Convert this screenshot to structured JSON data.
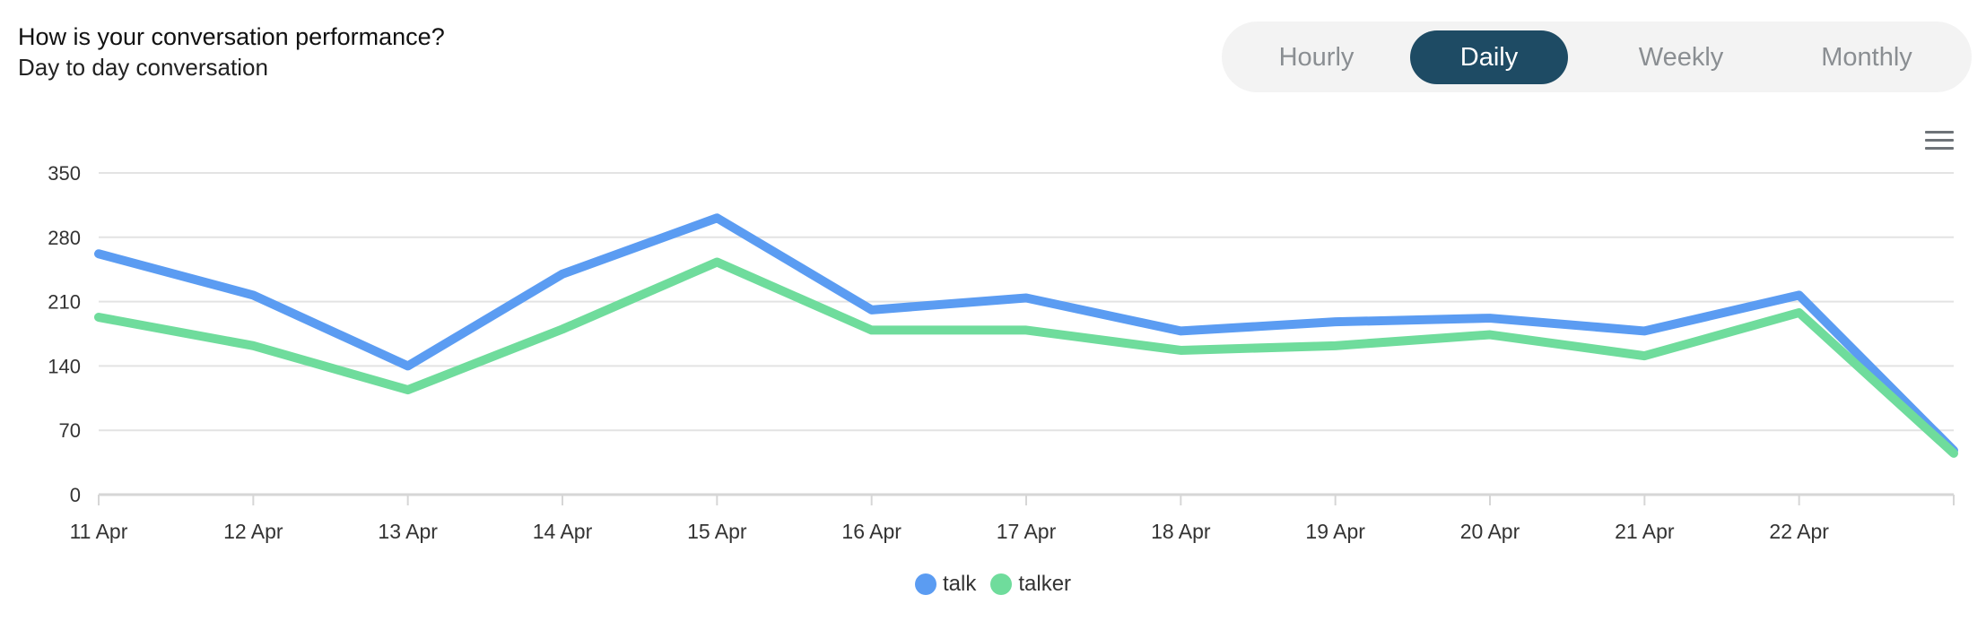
{
  "header": {
    "title": "How is your conversation performance?",
    "subtitle": "Day to day conversation"
  },
  "tabs": [
    {
      "label": "Hourly",
      "active": false
    },
    {
      "label": "Daily",
      "active": true
    },
    {
      "label": "Weekly",
      "active": false
    },
    {
      "label": "Monthly",
      "active": false
    }
  ],
  "menu": {
    "icon": "hamburger-menu-icon"
  },
  "colors": {
    "talk": "#5b9cf2",
    "talker": "#6fdc9c",
    "active_tab": "#1e4b64",
    "grid": "#e3e3e3",
    "axis": "#d6d6d6"
  },
  "chart_data": {
    "type": "line",
    "categories": [
      "11 Apr",
      "12 Apr",
      "13 Apr",
      "14 Apr",
      "15 Apr",
      "16 Apr",
      "17 Apr",
      "18 Apr",
      "19 Apr",
      "20 Apr",
      "21 Apr",
      "22 Apr",
      ""
    ],
    "series": [
      {
        "name": "talk",
        "values": [
          262,
          217,
          140,
          240,
          301,
          201,
          214,
          178,
          188,
          192,
          178,
          217,
          48
        ]
      },
      {
        "name": "talker",
        "values": [
          193,
          162,
          114,
          180,
          253,
          179,
          179,
          157,
          162,
          174,
          151,
          198,
          45
        ]
      }
    ],
    "yticks": [
      "0",
      "70",
      "140",
      "210",
      "280",
      "350"
    ],
    "ylim": [
      0,
      350
    ],
    "grid": true,
    "legend": "bottom-center"
  }
}
